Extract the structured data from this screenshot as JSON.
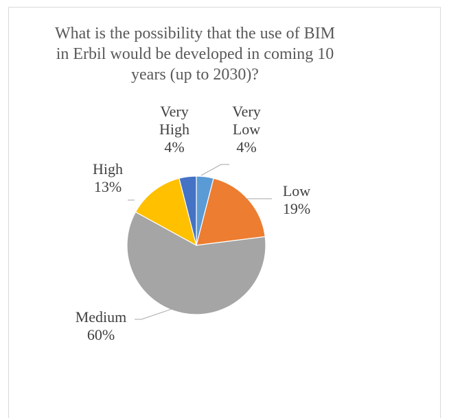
{
  "chart_data": {
    "type": "pie",
    "title_lines": [
      "What is the possibility that the use of BIM",
      "in Erbil would be developed  in coming 10",
      "years (up to 2030)?"
    ],
    "slices": [
      {
        "name": "Very Low",
        "name_lines": [
          "Very",
          "Low"
        ],
        "value": 4,
        "label": "4%",
        "color": "#5b9bd5"
      },
      {
        "name": "Low",
        "name_lines": [
          "Low"
        ],
        "value": 19,
        "label": "19%",
        "color": "#ed7d31"
      },
      {
        "name": "Medium",
        "name_lines": [
          "Medium"
        ],
        "value": 60,
        "label": "60%",
        "color": "#a5a5a5"
      },
      {
        "name": "High",
        "name_lines": [
          "High"
        ],
        "value": 13,
        "label": "13%",
        "color": "#ffc000"
      },
      {
        "name": "Very High",
        "name_lines": [
          "Very",
          "High"
        ],
        "value": 4,
        "label": "4%",
        "color": "#4472c4"
      }
    ],
    "legend": "none",
    "start_angle": "12 o'clock, clockwise"
  }
}
